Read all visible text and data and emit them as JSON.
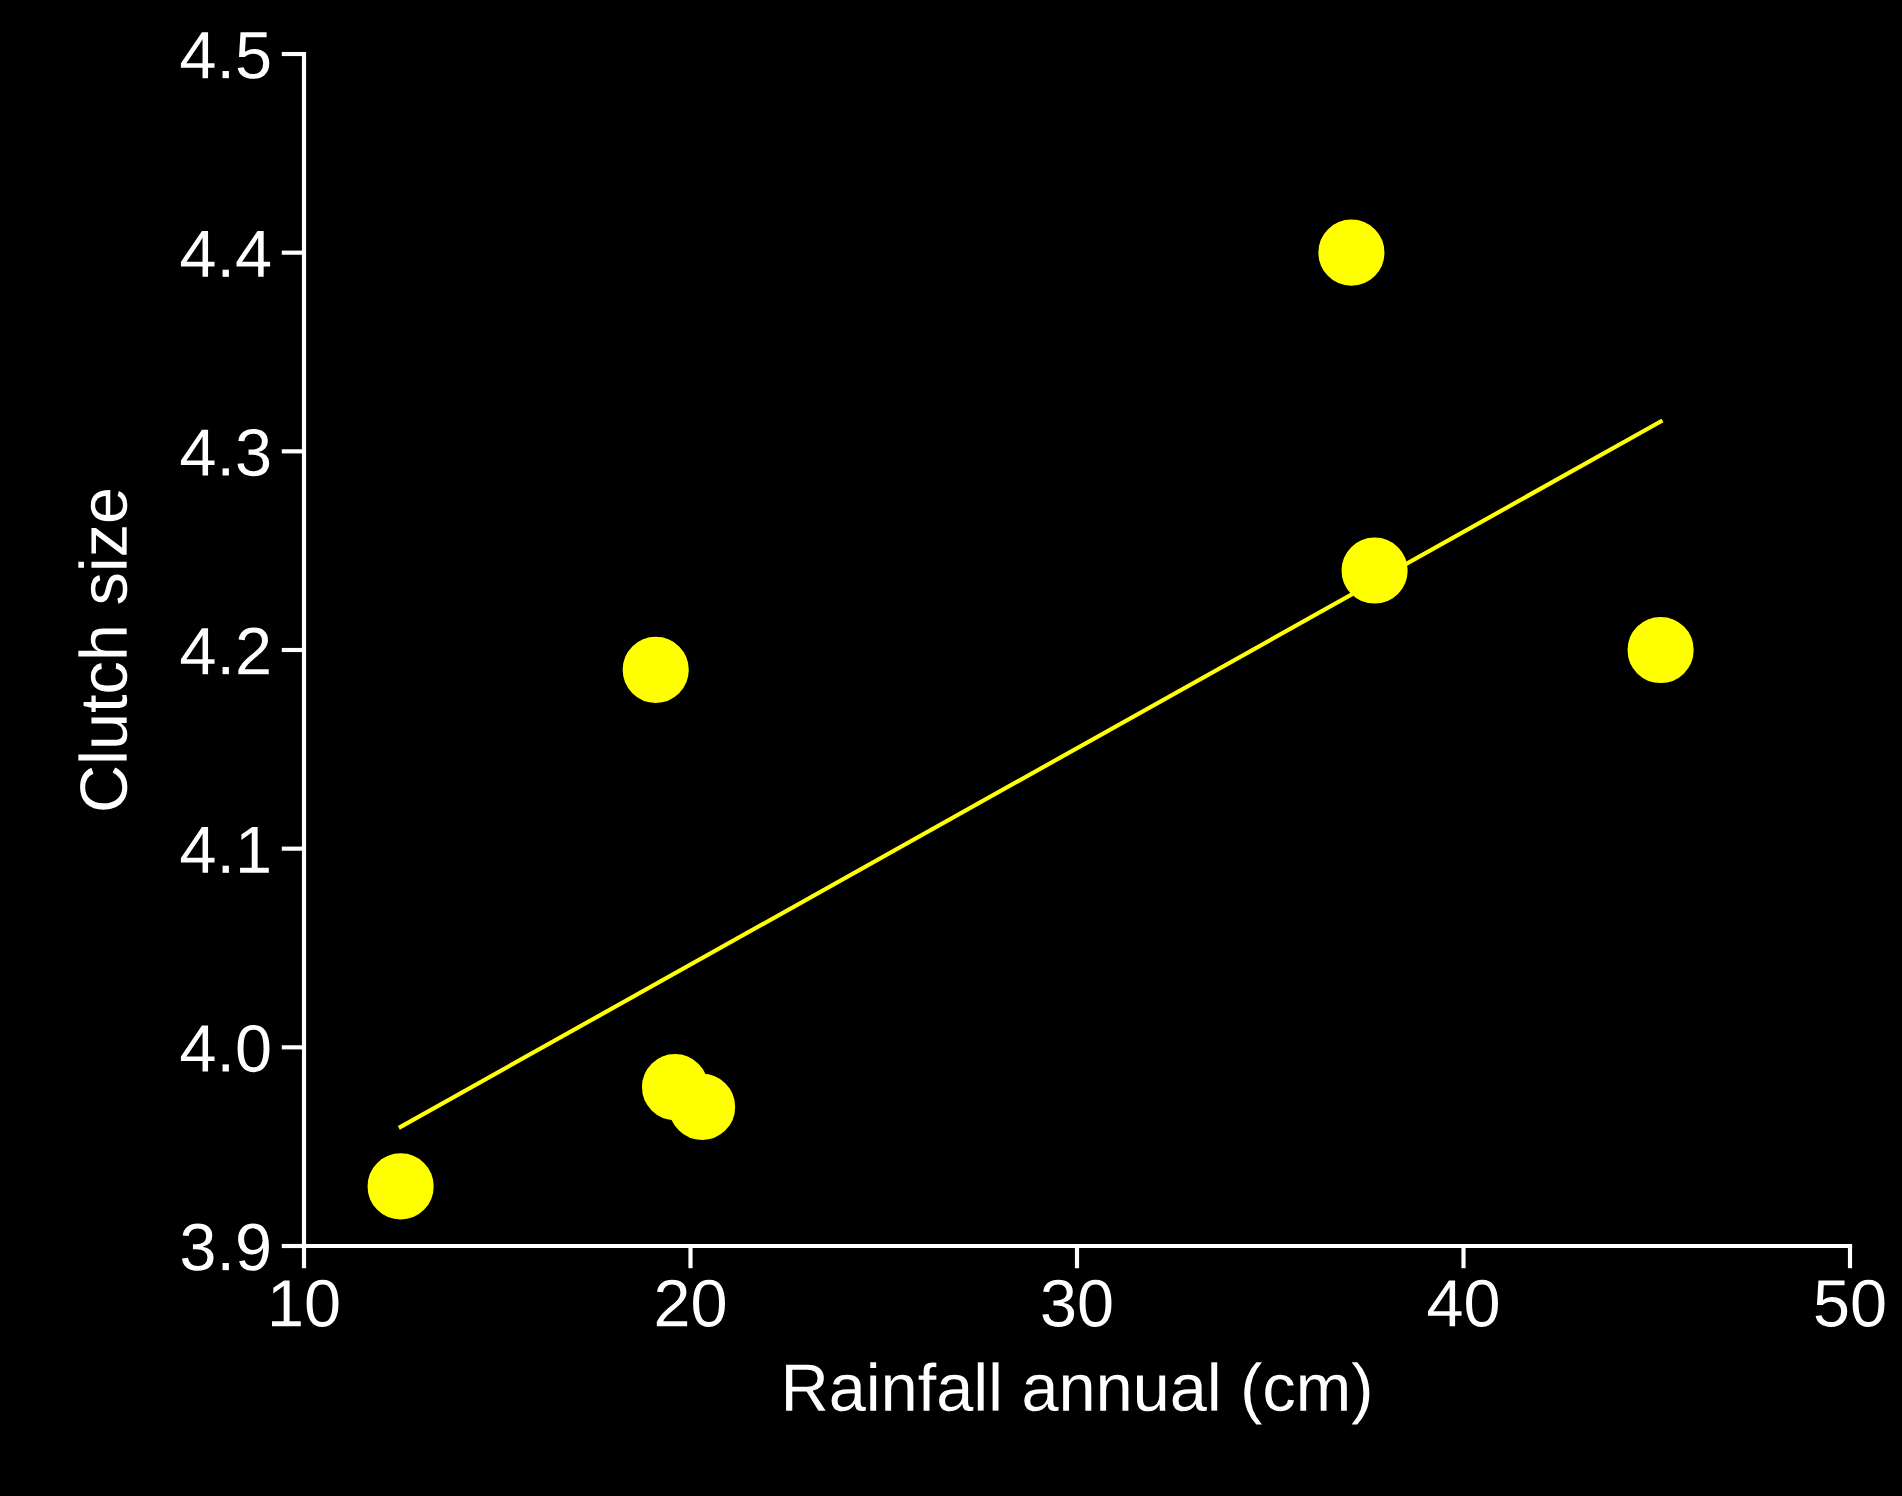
{
  "chart_data": {
    "type": "scatter",
    "xlabel": "Rainfall annual (cm)",
    "ylabel": "Clutch size",
    "xlim": [
      10,
      50
    ],
    "xticks": [
      10,
      20,
      30,
      40,
      50
    ],
    "ylim": [
      3.9,
      4.5
    ],
    "yticks": [
      3.9,
      {
        "value": 4.0,
        "label": "4.0"
      },
      4.1,
      4.2,
      4.3,
      4.4,
      4.5
    ],
    "grid": false,
    "series": [
      {
        "color": "#ffff00",
        "marker": "circle",
        "x": [
          12.5,
          19.1,
          19.6,
          20.3,
          37.1,
          37.7,
          45.1
        ],
        "values": [
          3.93,
          4.19,
          3.98,
          3.97,
          4.4,
          4.24,
          4.2
        ]
      },
      {
        "type": "line",
        "color": "#ffff00",
        "marker": "none",
        "x": [
          12.5,
          45.1
        ],
        "values": [
          3.96,
          4.315
        ]
      }
    ]
  }
}
